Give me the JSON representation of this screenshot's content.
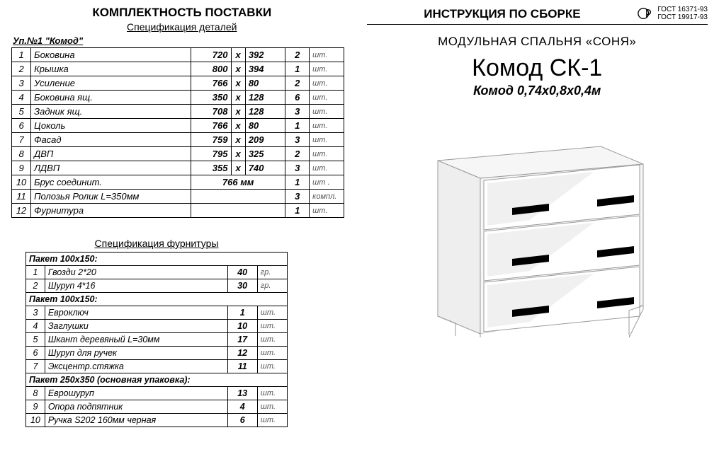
{
  "left": {
    "mainHeader": "КОМПЛЕКТНОСТЬ ПОСТАВКИ",
    "subHeader": "Спецификация деталей",
    "packageLabel": "Уп.№1 \"Комод\"",
    "parts": [
      {
        "idx": "1",
        "name": "Боковина",
        "d1": "720",
        "d2": "392",
        "qty": "2",
        "unit": "шт."
      },
      {
        "idx": "2",
        "name": "Крышка",
        "d1": "800",
        "d2": "394",
        "qty": "1",
        "unit": "шт."
      },
      {
        "idx": "3",
        "name": "Усиление",
        "d1": "766",
        "d2": "80",
        "qty": "2",
        "unit": "шт."
      },
      {
        "idx": "4",
        "name": "Боковина ящ.",
        "d1": "350",
        "d2": "128",
        "qty": "6",
        "unit": "шт."
      },
      {
        "idx": "5",
        "name": "Задник ящ.",
        "d1": "708",
        "d2": "128",
        "qty": "3",
        "unit": "шт."
      },
      {
        "idx": "6",
        "name": "Цоколь",
        "d1": "766",
        "d2": "80",
        "qty": "1",
        "unit": "шт."
      },
      {
        "idx": "7",
        "name": "Фасад",
        "d1": "759",
        "d2": "209",
        "qty": "3",
        "unit": "шт."
      },
      {
        "idx": "8",
        "name": "ДВП",
        "d1": "795",
        "d2": "325",
        "qty": "2",
        "unit": "шт."
      },
      {
        "idx": "9",
        "name": "ЛДВП",
        "d1": "355",
        "d2": "740",
        "qty": "3",
        "unit": "шт."
      },
      {
        "idx": "10",
        "name": "Брус соединит.",
        "merged": "766 мм",
        "qty": "1",
        "unit": "шт ."
      },
      {
        "idx": "11",
        "name": "Полозья Ролик L=350мм",
        "merged": "",
        "qty": "3",
        "unit": "компл."
      },
      {
        "idx": "12",
        "name": "Фурнитура",
        "merged": "",
        "qty": "1",
        "unit": "шт."
      }
    ],
    "hwTitle": "Спецификация фурнитуры",
    "hwRows": [
      {
        "section": true,
        "text": "Пакет 100х150:"
      },
      {
        "idx": "1",
        "name": "Гвозди 2*20",
        "qty": "40",
        "unit": "гр."
      },
      {
        "idx": "2",
        "name": "Шуруп 4*16",
        "qty": "30",
        "unit": "гр."
      },
      {
        "section": true,
        "text": "Пакет 100х150:"
      },
      {
        "idx": "3",
        "name": "Евроключ",
        "qty": "1",
        "unit": "шт."
      },
      {
        "idx": "4",
        "name": "Заглушки",
        "qty": "10",
        "unit": "шт."
      },
      {
        "idx": "5",
        "name": "Шкант деревяный L=30мм",
        "qty": "17",
        "unit": "шт."
      },
      {
        "idx": "6",
        "name": "Шуруп для ручек",
        "qty": "12",
        "unit": "шт."
      },
      {
        "idx": "7",
        "name": "Эксцентр.стяжка",
        "qty": "11",
        "unit": "шт."
      },
      {
        "section": true,
        "text": "Пакет 250х350 (основная упаковка):"
      },
      {
        "idx": "8",
        "name": "Еврошуруп",
        "qty": "13",
        "unit": "шт."
      },
      {
        "idx": "9",
        "name": "Опора подпятник",
        "qty": "4",
        "unit": "шт."
      },
      {
        "idx": "10",
        "name": "Ручка  S202   160мм черная",
        "qty": "6",
        "unit": "шт."
      }
    ]
  },
  "right": {
    "header": "ИНСТРУКЦИЯ ПО СБОРКЕ",
    "gost1": "ГОСТ 16371-93",
    "gost2": "ГОСТ 19917-93",
    "series": "МОДУЛЬНАЯ СПАЛЬНЯ «СОНЯ»",
    "model": "Комод СК-1",
    "dims": "Комод 0,74х0,8х0,4м",
    "dresser": {
      "body_fill": "#f6f6f6",
      "body_stroke": "#9a9a9a",
      "front_fill": "#ffffff",
      "highlight": "#eeeeee",
      "handle": "#000000"
    }
  }
}
